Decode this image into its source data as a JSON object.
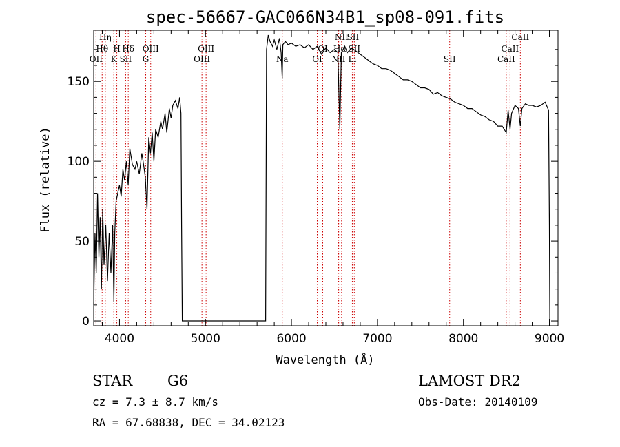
{
  "chart_data": {
    "type": "line",
    "title": "spec-56667-GAC066N34B1_sp08-091.fits",
    "xlabel": "Wavelength (Å)",
    "ylabel": "Flux (relative)",
    "xlim": [
      3700,
      9100
    ],
    "ylim": [
      -3,
      182
    ],
    "xticks": [
      4000,
      5000,
      6000,
      7000,
      8000,
      9000
    ],
    "yticks": [
      0,
      50,
      100,
      150
    ],
    "series": [
      {
        "x": [
          3700,
          3715,
          3730,
          3745,
          3760,
          3775,
          3790,
          3805,
          3820,
          3840,
          3860,
          3880,
          3900,
          3920,
          3935,
          3945,
          3960,
          3980,
          4000,
          4020,
          4040,
          4060,
          4080,
          4101,
          4120,
          4150,
          4180,
          4200,
          4230,
          4260,
          4280,
          4300,
          4320,
          4340,
          4360,
          4380,
          4400,
          4420,
          4450,
          4480,
          4500,
          4530,
          4550,
          4580,
          4600,
          4620,
          4650,
          4680,
          4700,
          4715,
          4722,
          4730,
          5700,
          5710,
          5730,
          5750,
          5780,
          5800,
          5830,
          5860,
          5880,
          5893,
          5900,
          5930,
          5960,
          6000,
          6050,
          6100,
          6150,
          6200,
          6250,
          6300,
          6350,
          6400,
          6450,
          6500,
          6540,
          6563,
          6580,
          6620,
          6650,
          6700,
          6750,
          6800,
          6850,
          6900,
          6950,
          7000,
          7050,
          7100,
          7150,
          7200,
          7250,
          7300,
          7350,
          7400,
          7450,
          7500,
          7550,
          7600,
          7650,
          7700,
          7750,
          7800,
          7850,
          7900,
          7950,
          8000,
          8050,
          8100,
          8150,
          8200,
          8250,
          8300,
          8350,
          8400,
          8450,
          8498,
          8520,
          8542,
          8560,
          8600,
          8640,
          8662,
          8680,
          8720,
          8760,
          8800,
          8850,
          8900,
          8950,
          8990,
          9000,
          9005
        ],
        "y": [
          10,
          55,
          30,
          80,
          40,
          65,
          20,
          70,
          35,
          60,
          25,
          55,
          30,
          60,
          12,
          55,
          75,
          80,
          85,
          78,
          95,
          88,
          100,
          85,
          108,
          98,
          95,
          100,
          92,
          105,
          98,
          90,
          70,
          115,
          105,
          118,
          100,
          120,
          115,
          125,
          120,
          130,
          118,
          133,
          127,
          135,
          138,
          133,
          140,
          130,
          60,
          0,
          0,
          170,
          179,
          175,
          172,
          176,
          170,
          177,
          168,
          152,
          173,
          175,
          173,
          174,
          172,
          173,
          171,
          173,
          170,
          172,
          167,
          171,
          168,
          170,
          168,
          120,
          168,
          172,
          168,
          171,
          169,
          167,
          165,
          163,
          161,
          160,
          158,
          158,
          157,
          155,
          153,
          151,
          151,
          150,
          148,
          146,
          146,
          145,
          142,
          143,
          141,
          140,
          139,
          137,
          136,
          135,
          133,
          133,
          131,
          129,
          128,
          126,
          125,
          122,
          122,
          118,
          132,
          120,
          130,
          135,
          133,
          122,
          133,
          136,
          135,
          135,
          134,
          135,
          137,
          132,
          60,
          0
        ]
      }
    ],
    "grid": false,
    "annotations": [
      {
        "text": "OII",
        "x": 3727
      },
      {
        "text": "Hθ",
        "x": 3798
      },
      {
        "text": "Hη",
        "x": 3835
      },
      {
        "text": "K",
        "x": 3934
      },
      {
        "text": "H",
        "x": 3969
      },
      {
        "text": "SII",
        "x": 4072
      },
      {
        "text": "Hδ",
        "x": 4102
      },
      {
        "text": "G",
        "x": 4305
      },
      {
        "text": "OIII",
        "x": 4363
      },
      {
        "text": "OIII",
        "x": 4959
      },
      {
        "text": "OIII",
        "x": 5007
      },
      {
        "text": "Na",
        "x": 5893
      },
      {
        "text": "OI",
        "x": 6300
      },
      {
        "text": "OI",
        "x": 6364
      },
      {
        "text": "NII",
        "x": 6548
      },
      {
        "text": "Hα",
        "x": 6563
      },
      {
        "text": "NII",
        "x": 6583
      },
      {
        "text": "Li",
        "x": 6708
      },
      {
        "text": "SII",
        "x": 6716
      },
      {
        "text": "SII",
        "x": 6731
      },
      {
        "text": "SII",
        "x": 7840
      },
      {
        "text": "CaII",
        "x": 8498
      },
      {
        "text": "CaII",
        "x": 8542
      },
      {
        "text": "CaII",
        "x": 8662
      }
    ]
  },
  "info": {
    "class": "STAR",
    "subclass": "G6",
    "survey": "LAMOST DR2",
    "cz": "cz = 7.3 ± 8.7 km/s",
    "obs_date": "Obs-Date: 20140109",
    "coords": "RA =  67.68838, DEC =  34.02123"
  },
  "colors": {
    "spectrum": "#000000",
    "line_markers": "#cc0000"
  }
}
